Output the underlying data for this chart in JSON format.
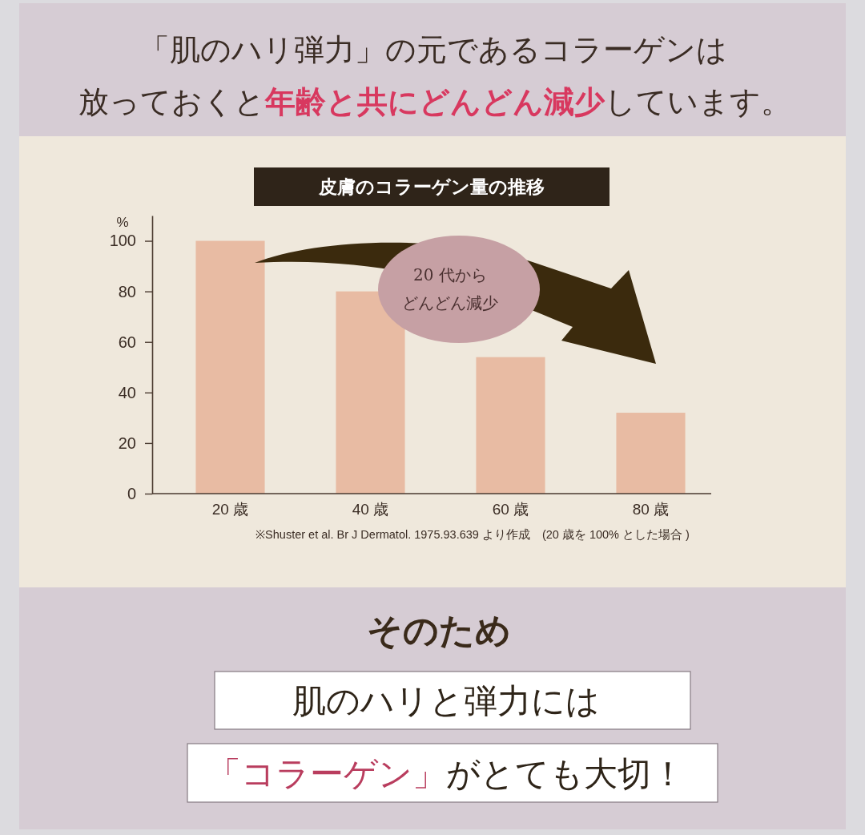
{
  "chart_data": {
    "type": "bar",
    "title": "皮膚のコラーゲン量の推移",
    "ylabel": "%",
    "categories": [
      "20 歳",
      "40 歳",
      "60 歳",
      "80 歳"
    ],
    "values": [
      100,
      80,
      54,
      32
    ],
    "color": "#e8bba3",
    "ylim": [
      0,
      110
    ],
    "yticks": [
      0,
      20,
      40,
      60,
      80,
      100
    ],
    "annotations": [
      "「肌のハリ弾力」の元であるコラーゲンは",
      "放っておくと",
      "年齢と共にどんどん減少",
      "しています。",
      "20 代から",
      "どんどん減少",
      "※Shuster et al. Br J Dermatol. 1975.93.639 より作成　(20 歳を 100% とした場合 )",
      "そのため",
      "肌のハリと弾力には",
      "「コラーゲン」",
      "がとても大切！"
    ]
  }
}
